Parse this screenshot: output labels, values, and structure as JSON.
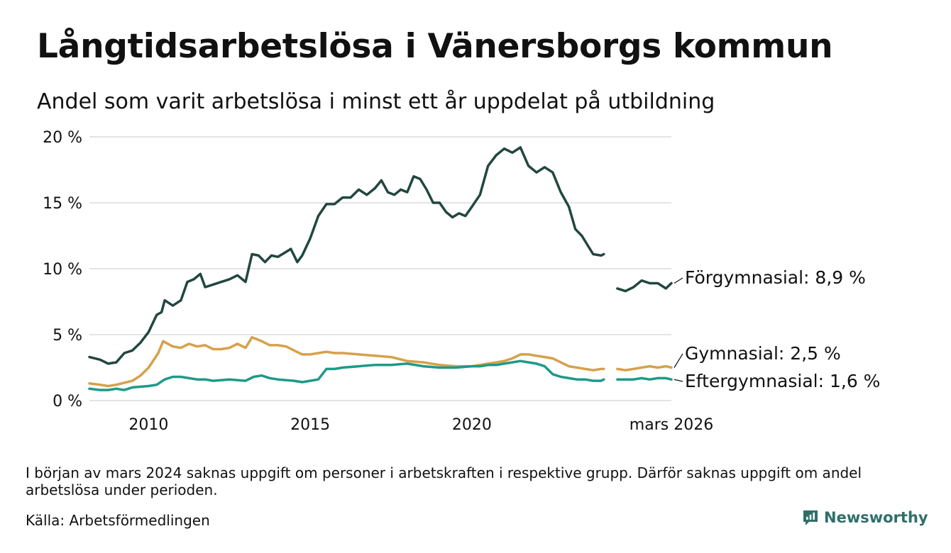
{
  "title": "Långtidsarbetslösa i Vänersborgs kommun",
  "subtitle": "Andel som varit arbetslösa i minst ett år uppdelat på utbildning",
  "note": "I början av mars 2024 saknas uppgift om personer i arbetskraften i respektive grupp. Därför saknas uppgift om andel arbetslösa under perioden.",
  "source": "Källa: Arbetsförmedlingen",
  "brand": "Newsworthy",
  "chart_data": {
    "type": "line",
    "title": "Långtidsarbetslösa i Vänersborgs kommun",
    "xlabel": "",
    "ylabel": "",
    "ylim": [
      0,
      20
    ],
    "xlim": [
      2008.17,
      2026.17
    ],
    "grid": true,
    "legend": "direct labels at line ends, right",
    "y_ticks": [
      {
        "value": 0,
        "label": "0 %"
      },
      {
        "value": 5,
        "label": "5 %"
      },
      {
        "value": 10,
        "label": "10 %"
      },
      {
        "value": 15,
        "label": "15 %"
      },
      {
        "value": 20,
        "label": "20 %"
      }
    ],
    "x_ticks": [
      {
        "value": 2010,
        "label": "2010"
      },
      {
        "value": 2015,
        "label": "2015"
      },
      {
        "value": 2020,
        "label": "2020"
      },
      {
        "value": 2026.17,
        "label": "mars 2026"
      }
    ],
    "series": [
      {
        "name": "Förgymnasial",
        "end_label": "Förgymnasial: 8,9 %",
        "color": "#21473f",
        "segments": [
          [
            [
              2008.17,
              3.3
            ],
            [
              2008.5,
              3.1
            ],
            [
              2008.75,
              2.8
            ],
            [
              2009.0,
              2.9
            ],
            [
              2009.25,
              3.6
            ],
            [
              2009.5,
              3.8
            ],
            [
              2009.75,
              4.4
            ],
            [
              2010.0,
              5.2
            ],
            [
              2010.25,
              6.5
            ],
            [
              2010.4,
              6.7
            ],
            [
              2010.5,
              7.6
            ],
            [
              2010.75,
              7.2
            ],
            [
              2011.0,
              7.6
            ],
            [
              2011.2,
              9.0
            ],
            [
              2011.4,
              9.2
            ],
            [
              2011.6,
              9.6
            ],
            [
              2011.75,
              8.6
            ],
            [
              2012.0,
              8.8
            ],
            [
              2012.25,
              9.0
            ],
            [
              2012.5,
              9.2
            ],
            [
              2012.75,
              9.5
            ],
            [
              2013.0,
              9.0
            ],
            [
              2013.2,
              11.1
            ],
            [
              2013.4,
              11.0
            ],
            [
              2013.6,
              10.5
            ],
            [
              2013.8,
              11.0
            ],
            [
              2014.0,
              10.9
            ],
            [
              2014.2,
              11.2
            ],
            [
              2014.4,
              11.5
            ],
            [
              2014.6,
              10.5
            ],
            [
              2014.75,
              11.0
            ],
            [
              2015.0,
              12.3
            ],
            [
              2015.25,
              14.0
            ],
            [
              2015.5,
              14.9
            ],
            [
              2015.75,
              14.9
            ],
            [
              2016.0,
              15.4
            ],
            [
              2016.25,
              15.4
            ],
            [
              2016.5,
              16.0
            ],
            [
              2016.75,
              15.6
            ],
            [
              2017.0,
              16.1
            ],
            [
              2017.2,
              16.7
            ],
            [
              2017.4,
              15.8
            ],
            [
              2017.6,
              15.6
            ],
            [
              2017.8,
              16.0
            ],
            [
              2018.0,
              15.8
            ],
            [
              2018.2,
              17.0
            ],
            [
              2018.4,
              16.8
            ],
            [
              2018.6,
              16.0
            ],
            [
              2018.8,
              15.0
            ],
            [
              2019.0,
              15.0
            ],
            [
              2019.2,
              14.3
            ],
            [
              2019.4,
              13.9
            ],
            [
              2019.6,
              14.2
            ],
            [
              2019.8,
              14.0
            ],
            [
              2020.0,
              14.7
            ],
            [
              2020.25,
              15.6
            ],
            [
              2020.5,
              17.8
            ],
            [
              2020.75,
              18.6
            ],
            [
              2021.0,
              19.1
            ],
            [
              2021.25,
              18.8
            ],
            [
              2021.5,
              19.2
            ],
            [
              2021.75,
              17.8
            ],
            [
              2022.0,
              17.3
            ],
            [
              2022.25,
              17.7
            ],
            [
              2022.5,
              17.3
            ],
            [
              2022.75,
              15.8
            ],
            [
              2023.0,
              14.7
            ],
            [
              2023.2,
              13.0
            ],
            [
              2023.4,
              12.5
            ],
            [
              2023.6,
              11.7
            ],
            [
              2023.75,
              11.1
            ],
            [
              2024.0,
              11.0
            ],
            [
              2024.08,
              11.1
            ]
          ],
          [
            [
              2024.5,
              8.5
            ],
            [
              2024.75,
              8.3
            ],
            [
              2025.0,
              8.6
            ],
            [
              2025.25,
              9.1
            ],
            [
              2025.5,
              8.9
            ],
            [
              2025.75,
              8.9
            ],
            [
              2026.0,
              8.5
            ],
            [
              2026.17,
              8.9
            ]
          ]
        ]
      },
      {
        "name": "Gymnasial",
        "end_label": "Gymnasial: 2,5 %",
        "color": "#d6a14b",
        "segments": [
          [
            [
              2008.17,
              1.3
            ],
            [
              2008.5,
              1.2
            ],
            [
              2008.75,
              1.1
            ],
            [
              2009.0,
              1.2
            ],
            [
              2009.5,
              1.5
            ],
            [
              2009.75,
              1.9
            ],
            [
              2010.0,
              2.5
            ],
            [
              2010.3,
              3.6
            ],
            [
              2010.45,
              4.5
            ],
            [
              2010.75,
              4.1
            ],
            [
              2011.0,
              4.0
            ],
            [
              2011.25,
              4.3
            ],
            [
              2011.5,
              4.1
            ],
            [
              2011.75,
              4.2
            ],
            [
              2012.0,
              3.9
            ],
            [
              2012.25,
              3.9
            ],
            [
              2012.5,
              4.0
            ],
            [
              2012.75,
              4.3
            ],
            [
              2013.0,
              4.0
            ],
            [
              2013.2,
              4.8
            ],
            [
              2013.5,
              4.5
            ],
            [
              2013.75,
              4.2
            ],
            [
              2014.0,
              4.2
            ],
            [
              2014.25,
              4.1
            ],
            [
              2014.5,
              3.8
            ],
            [
              2014.75,
              3.5
            ],
            [
              2015.0,
              3.5
            ],
            [
              2015.25,
              3.6
            ],
            [
              2015.5,
              3.7
            ],
            [
              2015.75,
              3.6
            ],
            [
              2016.0,
              3.6
            ],
            [
              2016.5,
              3.5
            ],
            [
              2017.0,
              3.4
            ],
            [
              2017.5,
              3.3
            ],
            [
              2018.0,
              3.0
            ],
            [
              2018.5,
              2.9
            ],
            [
              2019.0,
              2.7
            ],
            [
              2019.5,
              2.6
            ],
            [
              2020.0,
              2.6
            ],
            [
              2020.25,
              2.7
            ],
            [
              2020.5,
              2.8
            ],
            [
              2020.75,
              2.9
            ],
            [
              2021.0,
              3.0
            ],
            [
              2021.25,
              3.2
            ],
            [
              2021.5,
              3.5
            ],
            [
              2021.75,
              3.5
            ],
            [
              2022.0,
              3.4
            ],
            [
              2022.25,
              3.3
            ],
            [
              2022.5,
              3.2
            ],
            [
              2022.75,
              2.9
            ],
            [
              2023.0,
              2.6
            ],
            [
              2023.5,
              2.4
            ],
            [
              2023.75,
              2.3
            ],
            [
              2024.0,
              2.4
            ],
            [
              2024.08,
              2.4
            ]
          ],
          [
            [
              2024.5,
              2.4
            ],
            [
              2024.75,
              2.3
            ],
            [
              2025.0,
              2.4
            ],
            [
              2025.25,
              2.5
            ],
            [
              2025.5,
              2.6
            ],
            [
              2025.75,
              2.5
            ],
            [
              2026.0,
              2.6
            ],
            [
              2026.17,
              2.5
            ]
          ]
        ]
      },
      {
        "name": "Eftergymnasial",
        "end_label": "Eftergymnasial: 1,6 %",
        "color": "#1d9a88",
        "segments": [
          [
            [
              2008.17,
              0.9
            ],
            [
              2008.5,
              0.8
            ],
            [
              2008.75,
              0.8
            ],
            [
              2009.0,
              0.9
            ],
            [
              2009.25,
              0.8
            ],
            [
              2009.5,
              1.0
            ],
            [
              2010.0,
              1.1
            ],
            [
              2010.25,
              1.2
            ],
            [
              2010.5,
              1.6
            ],
            [
              2010.75,
              1.8
            ],
            [
              2011.0,
              1.8
            ],
            [
              2011.25,
              1.7
            ],
            [
              2011.5,
              1.6
            ],
            [
              2011.75,
              1.6
            ],
            [
              2012.0,
              1.5
            ],
            [
              2012.5,
              1.6
            ],
            [
              2013.0,
              1.5
            ],
            [
              2013.25,
              1.8
            ],
            [
              2013.5,
              1.9
            ],
            [
              2013.75,
              1.7
            ],
            [
              2014.0,
              1.6
            ],
            [
              2014.5,
              1.5
            ],
            [
              2014.75,
              1.4
            ],
            [
              2015.0,
              1.5
            ],
            [
              2015.25,
              1.6
            ],
            [
              2015.5,
              2.4
            ],
            [
              2015.75,
              2.4
            ],
            [
              2016.0,
              2.5
            ],
            [
              2016.5,
              2.6
            ],
            [
              2017.0,
              2.7
            ],
            [
              2017.5,
              2.7
            ],
            [
              2018.0,
              2.8
            ],
            [
              2018.5,
              2.6
            ],
            [
              2019.0,
              2.5
            ],
            [
              2019.5,
              2.5
            ],
            [
              2020.0,
              2.6
            ],
            [
              2020.25,
              2.6
            ],
            [
              2020.5,
              2.7
            ],
            [
              2020.75,
              2.7
            ],
            [
              2021.0,
              2.8
            ],
            [
              2021.25,
              2.9
            ],
            [
              2021.5,
              3.0
            ],
            [
              2021.75,
              2.9
            ],
            [
              2022.0,
              2.8
            ],
            [
              2022.25,
              2.6
            ],
            [
              2022.5,
              2.0
            ],
            [
              2022.75,
              1.8
            ],
            [
              2023.0,
              1.7
            ],
            [
              2023.25,
              1.6
            ],
            [
              2023.5,
              1.6
            ],
            [
              2023.75,
              1.5
            ],
            [
              2024.0,
              1.5
            ],
            [
              2024.08,
              1.6
            ]
          ],
          [
            [
              2024.5,
              1.6
            ],
            [
              2024.75,
              1.6
            ],
            [
              2025.0,
              1.6
            ],
            [
              2025.25,
              1.7
            ],
            [
              2025.5,
              1.6
            ],
            [
              2025.75,
              1.7
            ],
            [
              2026.0,
              1.7
            ],
            [
              2026.17,
              1.6
            ]
          ]
        ]
      }
    ]
  }
}
